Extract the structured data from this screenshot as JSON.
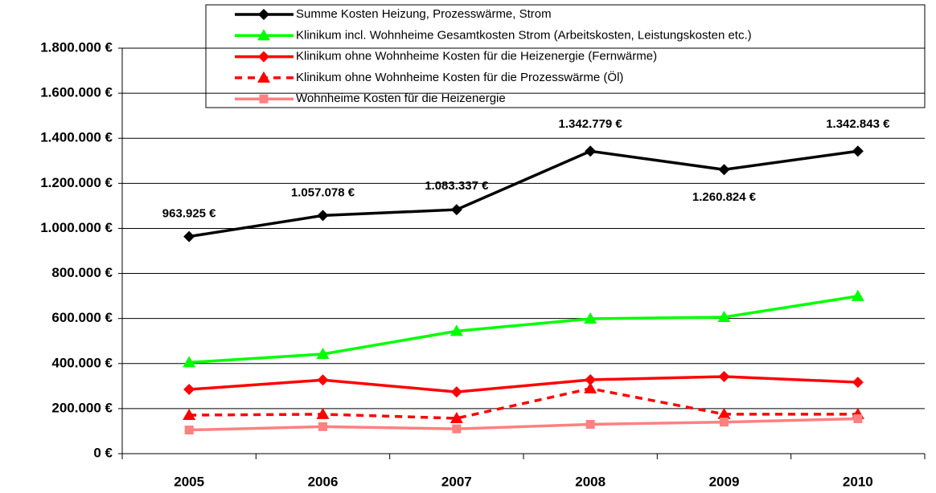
{
  "chart_data": {
    "type": "line",
    "categories": [
      "2005",
      "2006",
      "2007",
      "2008",
      "2009",
      "2010"
    ],
    "ylim": [
      0,
      1800000
    ],
    "yticks": [
      {
        "value": 0,
        "label": "0 €"
      },
      {
        "value": 200000,
        "label": "200.000 €"
      },
      {
        "value": 400000,
        "label": "400.000 €"
      },
      {
        "value": 600000,
        "label": "600.000 €"
      },
      {
        "value": 800000,
        "label": "800.000 €"
      },
      {
        "value": 1000000,
        "label": "1.000.000 €"
      },
      {
        "value": 1200000,
        "label": "1.200.000 €"
      },
      {
        "value": 1400000,
        "label": "1.400.000 €"
      },
      {
        "value": 1600000,
        "label": "1.600.000 €"
      },
      {
        "value": 1800000,
        "label": "1.800.000 €"
      }
    ],
    "grid": true,
    "legend": "top",
    "series": [
      {
        "name": "Summe Kosten Heizung, Prozesswärme, Strom",
        "color": "#000000",
        "marker": "diamond",
        "dashed": false,
        "values": [
          963925,
          1057078,
          1083337,
          1342779,
          1260824,
          1342843
        ],
        "value_labels": [
          "963.925 €",
          "1.057.078 €",
          "1.083.337 €",
          "1.342.779 €",
          "1.260.824 €",
          "1.342.843 €"
        ]
      },
      {
        "name": "Klinikum incl. Wohnheime Gesamtkosten Strom (Arbeitskosten, Leistungskosten etc.)",
        "color": "#00ff00",
        "marker": "triangle",
        "dashed": false,
        "values": [
          405000,
          442000,
          544000,
          599000,
          606000,
          699000
        ]
      },
      {
        "name": "Klinikum ohne Wohnheime Kosten für die Heizenergie (Fernwärme)",
        "color": "#ff0000",
        "marker": "diamond",
        "dashed": false,
        "values": [
          285000,
          327000,
          274000,
          328000,
          342000,
          317000
        ]
      },
      {
        "name": "Klinikum ohne Wohnheime Kosten für die Prozesswärme (Öl)",
        "color": "#ff0000",
        "marker": "triangle",
        "dashed": true,
        "values": [
          171000,
          175000,
          157000,
          289000,
          175000,
          175000
        ]
      },
      {
        "name": "Wohnheime Kosten für die Heizenergie",
        "color": "#ff8080",
        "marker": "square",
        "dashed": false,
        "values": [
          105000,
          120000,
          110000,
          130000,
          140000,
          155000
        ]
      }
    ]
  }
}
